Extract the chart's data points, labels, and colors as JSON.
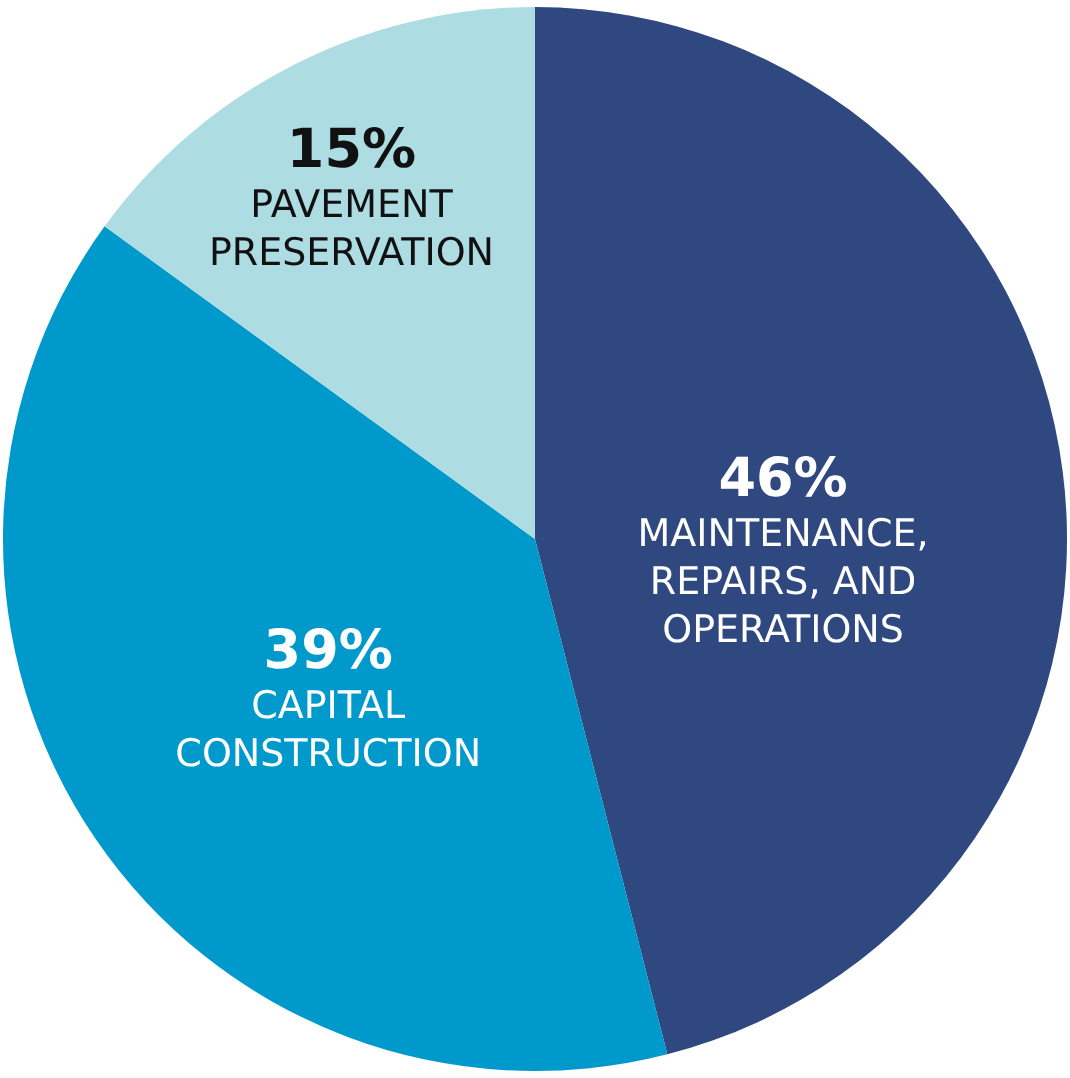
{
  "chart_data": {
    "type": "pie",
    "categories": [
      "MAINTENANCE, REPAIRS, AND OPERATIONS",
      "CAPITAL CONSTRUCTION",
      "PAVEMENT PRESERVATION"
    ],
    "values": [
      46,
      39,
      15
    ],
    "colors": [
      "#2f4880",
      "#0099cc",
      "#addce3"
    ],
    "value_labels": [
      "46%",
      "39%",
      "15%"
    ],
    "legend": false
  }
}
